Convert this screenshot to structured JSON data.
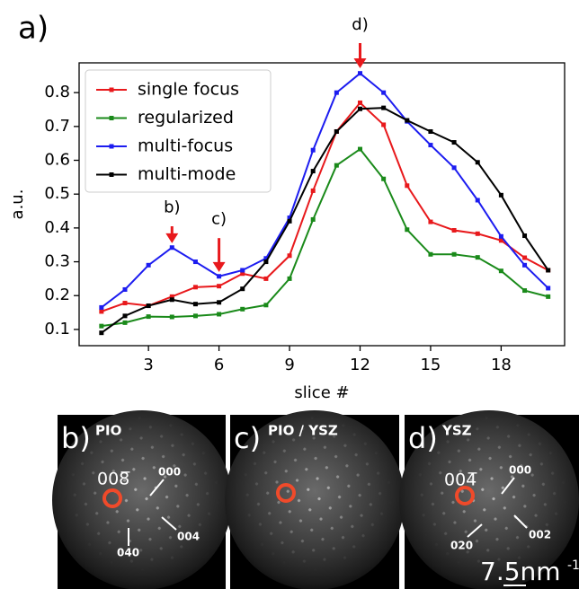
{
  "chart_data": {
    "type": "line",
    "panel_label": "a)",
    "xlabel": "slice #",
    "ylabel": "a.u.",
    "x": [
      1,
      2,
      3,
      4,
      5,
      6,
      7,
      8,
      9,
      10,
      11,
      12,
      13,
      14,
      15,
      16,
      17,
      18,
      19,
      20
    ],
    "xlim": [
      0.05,
      20.7
    ],
    "xticks": [
      3,
      6,
      9,
      12,
      15,
      18
    ],
    "ylim": [
      0.052,
      0.888
    ],
    "yticks": [
      0.1,
      0.2,
      0.3,
      0.4,
      0.5,
      0.6,
      0.7,
      0.8
    ],
    "legend": "upper left",
    "series": [
      {
        "name": "single focus",
        "color": "#e8191c",
        "values": [
          0.153,
          0.178,
          0.17,
          0.197,
          0.225,
          0.228,
          0.265,
          0.25,
          0.318,
          0.51,
          0.685,
          0.77,
          0.705,
          0.525,
          0.418,
          0.393,
          0.383,
          0.363,
          0.312,
          0.275
        ]
      },
      {
        "name": "regularized",
        "color": "#1a8a1a",
        "values": [
          0.11,
          0.12,
          0.138,
          0.137,
          0.14,
          0.145,
          0.16,
          0.172,
          0.25,
          0.425,
          0.585,
          0.633,
          0.545,
          0.395,
          0.322,
          0.322,
          0.313,
          0.273,
          0.215,
          0.197
        ]
      },
      {
        "name": "multi-focus",
        "color": "#1c1cf0",
        "values": [
          0.165,
          0.218,
          0.29,
          0.342,
          0.3,
          0.257,
          0.275,
          0.31,
          0.43,
          0.63,
          0.8,
          0.857,
          0.8,
          0.715,
          0.645,
          0.578,
          0.482,
          0.375,
          0.29,
          0.222
        ]
      },
      {
        "name": "multi-mode",
        "color": "#000000",
        "values": [
          0.09,
          0.14,
          0.17,
          0.188,
          0.175,
          0.18,
          0.22,
          0.3,
          0.42,
          0.568,
          0.685,
          0.752,
          0.755,
          0.718,
          0.685,
          0.653,
          0.594,
          0.497,
          0.377,
          0.275
        ]
      }
    ],
    "annotations": [
      "b)",
      "c)",
      "d)"
    ]
  },
  "panels": [
    {
      "label": "b)",
      "title": "PIO",
      "spots": [
        "008̅",
        "000",
        "004",
        "040"
      ]
    },
    {
      "label": "c)",
      "title": "PIO / YSZ"
    },
    {
      "label": "d)",
      "title": "YSZ",
      "spots": [
        "004̅",
        "000",
        "020",
        "002"
      ],
      "scale_bar": "7.5nm",
      "scale_unit_exp": "-1"
    }
  ]
}
